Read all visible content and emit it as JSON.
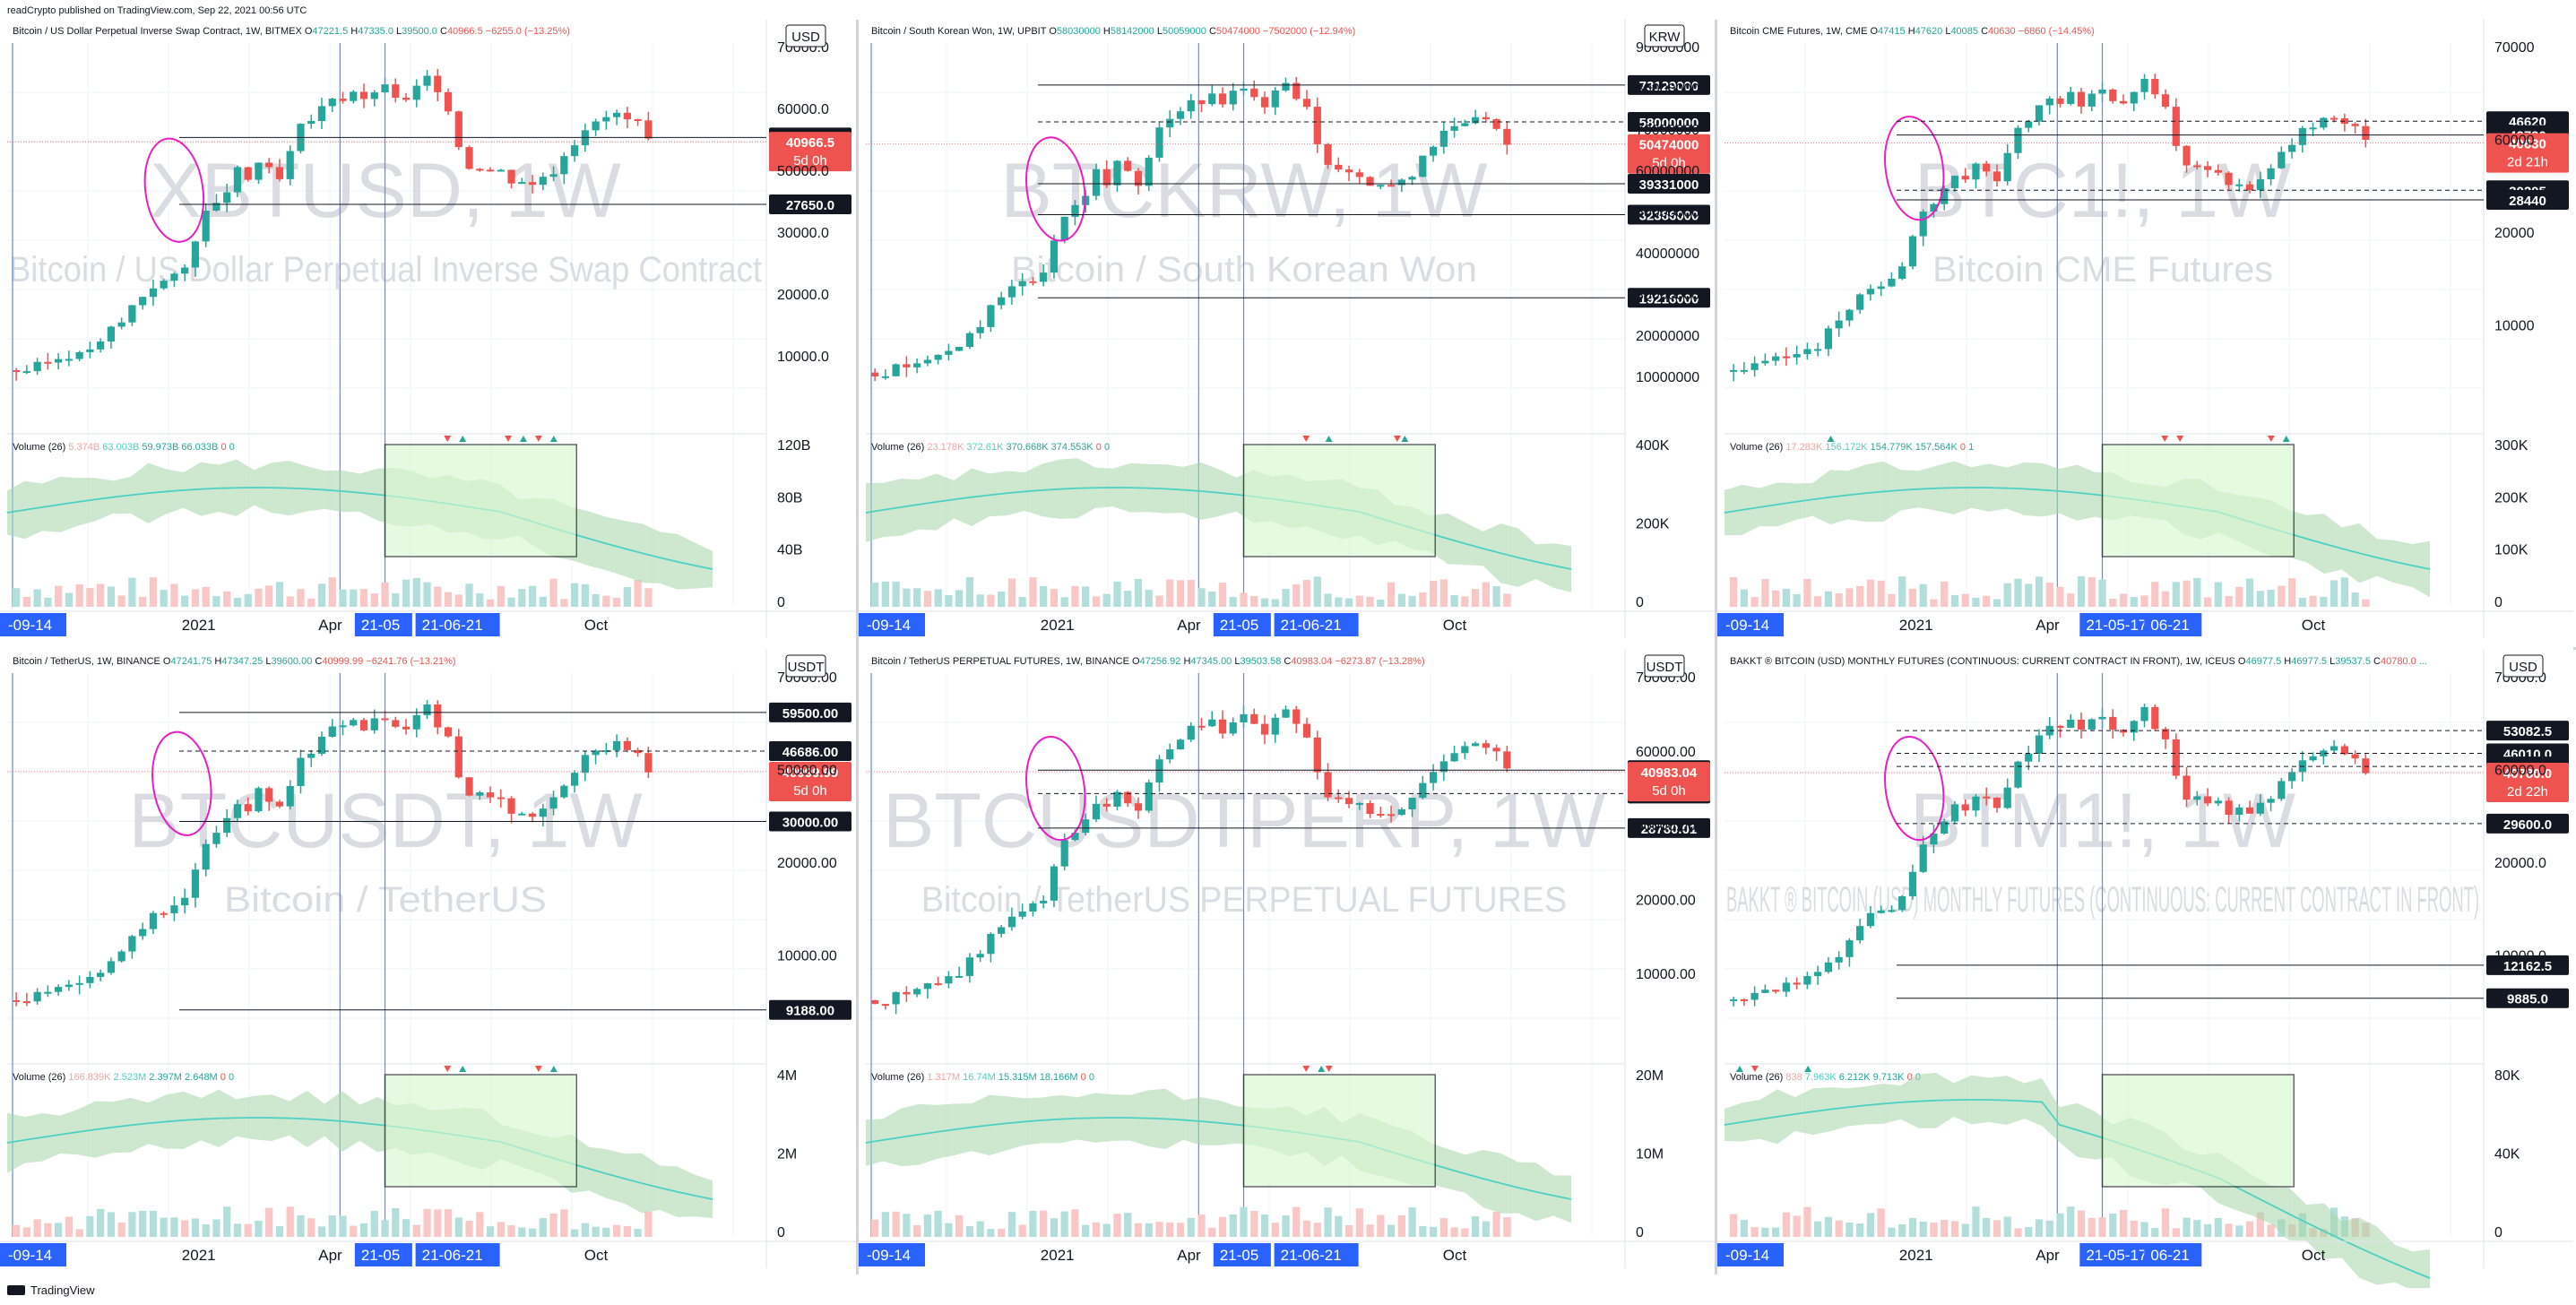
{
  "header": {
    "text": "readCrypto published on TradingView.com, Sep 22, 2021 00:56 UTC"
  },
  "footer": {
    "brand": "TradingView",
    "logo_icon": "tradingview-logo-icon"
  },
  "colors": {
    "up": "#26a69a",
    "down": "#ef5350",
    "grid": "#f0f3fa",
    "vline": "#5b8def",
    "cloud": "#a5d6a7",
    "cloud_red": "#f4a3a3",
    "ma": "#4dd0c4",
    "box_fill": "#d9f7d2",
    "circle": "#e91ec8",
    "price_bg": "#131722",
    "last_bg": "#ef5350"
  },
  "chart_data": [
    {
      "type": "candlestick",
      "info": "Bitcoin / US Dollar Perpetual Inverse Swap Contract, 1W, BITMEX",
      "ohlc": [
        {
          "k": "O",
          "v": "47221.5"
        },
        {
          "k": "H",
          "v": "47335.0"
        },
        {
          "k": "L",
          "v": "39500.0"
        },
        {
          "k": "C",
          "v": "40966.5",
          "d": true
        },
        {
          "k": "",
          "v": "−6255.0 (−13.25%)",
          "d": true
        }
      ],
      "watermark": "XBTUSD, 1W",
      "watermark_sub": "Bitcoin / US Dollar Perpetual Inverse Swap Contract",
      "currency": "USD",
      "ylim": [
        0,
        70000
      ],
      "log": true,
      "yticks": [
        "70000.0",
        "60000.0",
        "50000.0",
        "30000.0",
        "20000.0",
        "10000.0"
      ],
      "levels": [
        {
          "price": 42084.0,
          "label": "42084.0",
          "style": "solid"
        },
        {
          "price": 27650.0,
          "label": "27650.0",
          "style": "solid"
        }
      ],
      "last": {
        "price": 40966.5,
        "label": "40966.5",
        "countdown": "5d 0h"
      },
      "circle": {
        "x": 0.22,
        "y": 27000
      },
      "vlines": [
        0.0,
        0.49,
        0.56
      ],
      "volume": {
        "title": "Volume (26)",
        "vals": [
          {
            "t": "5.374B",
            "c": "#f4a3a3"
          },
          {
            "t": "63.003B",
            "c": "#4dd0c4"
          },
          {
            "t": "59.973B"
          },
          {
            "t": "66.033B"
          },
          {
            "t": "0",
            "c": "#ef5350"
          },
          {
            "t": "0",
            "c": "#26a69a"
          }
        ],
        "ticks": [
          "120B",
          "80B",
          "40B",
          "0"
        ],
        "box": [
          0.56,
          0.75
        ],
        "arrows": [
          [
            0.58,
            "dn"
          ],
          [
            0.6,
            "up"
          ],
          [
            0.66,
            "dn"
          ],
          [
            0.68,
            "up"
          ],
          [
            0.7,
            "dn"
          ],
          [
            0.72,
            "up"
          ]
        ],
        "cloud": "sample1"
      },
      "time": {
        "labels": [
          {
            "t": "-09-14",
            "x": 0.0,
            "hl": true
          },
          {
            "t": "2021",
            "x": 0.23
          },
          {
            "t": "Apr",
            "x": 0.41
          },
          {
            "t": "21-05",
            "x": 0.465,
            "hl": true
          },
          {
            "t": "21-06-21",
            "x": 0.545,
            "hl": true
          },
          {
            "t": "Oct",
            "x": 0.76
          }
        ]
      }
    },
    {
      "type": "candlestick",
      "info": "Bitcoin / South Korean Won, 1W, UPBIT",
      "ohlc": [
        {
          "k": "O",
          "v": "58030000"
        },
        {
          "k": "H",
          "v": "58142000"
        },
        {
          "k": "L",
          "v": "50059000"
        },
        {
          "k": "C",
          "v": "50474000",
          "d": true
        },
        {
          "k": "",
          "v": "−7502000 (−12.94%)",
          "d": true
        }
      ],
      "watermark": "BTCKRW, 1W",
      "watermark_sub": "Bitcoin / South Korean Won",
      "currency": "KRW",
      "ylim": [
        0,
        90000000
      ],
      "log": true,
      "yticks": [
        "90000000",
        "80000000",
        "70000000",
        "60000000",
        "50000000",
        "40000000",
        "30000000",
        "20000000",
        "10000000"
      ],
      "levels": [
        {
          "price": 73129000,
          "label": "73129000",
          "style": "solid"
        },
        {
          "price": 58000000,
          "label": "58000000",
          "style": "dashed"
        },
        {
          "price": 39331000,
          "label": "39331000",
          "style": "solid"
        },
        {
          "price": 32386000,
          "label": "32386000",
          "style": "solid"
        },
        {
          "price": 19216000,
          "label": "19216000",
          "style": "solid"
        }
      ],
      "last": {
        "price": 50474000,
        "label": "50474000",
        "countdown": "5d 0h"
      },
      "circle": {
        "x": 0.25,
        "y": 34000000
      },
      "vlines": [
        0.0,
        0.49,
        0.56
      ],
      "volume": {
        "title": "Volume (26)",
        "vals": [
          {
            "t": "23.178K",
            "c": "#f4a3a3"
          },
          {
            "t": "372.61K",
            "c": "#4dd0c4"
          },
          {
            "t": "370.668K"
          },
          {
            "t": "374.553K"
          },
          {
            "t": "0",
            "c": "#ef5350"
          },
          {
            "t": "0",
            "c": "#26a69a"
          }
        ],
        "ticks": [
          "400K",
          "200K",
          "0"
        ],
        "box": [
          0.56,
          0.75
        ],
        "arrows": [
          [
            0.58,
            "dn"
          ],
          [
            0.61,
            "up"
          ],
          [
            0.7,
            "dn"
          ],
          [
            0.71,
            "up"
          ]
        ],
        "cloud": "sample2"
      },
      "time": {
        "labels": [
          {
            "t": "-09-14",
            "x": 0.0,
            "hl": true
          },
          {
            "t": "2021",
            "x": 0.23
          },
          {
            "t": "Apr",
            "x": 0.41
          },
          {
            "t": "21-05",
            "x": 0.465,
            "hl": true
          },
          {
            "t": "21-06-21",
            "x": 0.545,
            "hl": true
          },
          {
            "t": "Oct",
            "x": 0.76
          }
        ]
      }
    },
    {
      "type": "candlestick",
      "info": "Bitcoin CME Futures, 1W, CME",
      "ohlc": [
        {
          "k": "O",
          "v": "47415"
        },
        {
          "k": "H",
          "v": "47620"
        },
        {
          "k": "L",
          "v": "40085"
        },
        {
          "k": "C",
          "v": "40630",
          "d": true
        },
        {
          "k": "",
          "v": "−6860 (−14.45%)",
          "d": true
        }
      ],
      "watermark": "BTC1!, 1W",
      "watermark_sub": "Bitcoin CME Futures",
      "currency": "",
      "ylim": [
        0,
        70000
      ],
      "log": true,
      "yticks": [
        "70000",
        "60000",
        "20000",
        "10000"
      ],
      "levels": [
        {
          "price": 46620,
          "label": "46620",
          "style": "dashed"
        },
        {
          "price": 42730,
          "label": "42730",
          "style": "solid"
        },
        {
          "price": 30205,
          "label": "30205",
          "style": "dashed"
        },
        {
          "price": 28440,
          "label": "28440",
          "style": "solid"
        }
      ],
      "last": {
        "price": 40630,
        "label": "40630",
        "countdown": "2d 21h"
      },
      "circle": {
        "x": 0.25,
        "y": 31000
      },
      "vlines": [
        0.49,
        0.56
      ],
      "volume": {
        "title": "Volume (26)",
        "vals": [
          {
            "t": "17.283K",
            "c": "#f4a3a3"
          },
          {
            "t": "156.172K",
            "c": "#4dd0c4"
          },
          {
            "t": "154.779K"
          },
          {
            "t": "157.564K"
          },
          {
            "t": "0",
            "c": "#ef5350"
          },
          {
            "t": "1",
            "c": "#26a69a"
          }
        ],
        "ticks": [
          "300K",
          "200K",
          "100K",
          "0"
        ],
        "box": [
          0.56,
          0.75
        ],
        "arrows": [
          [
            0.14,
            "up"
          ],
          [
            0.58,
            "dn"
          ],
          [
            0.6,
            "dn"
          ],
          [
            0.72,
            "dn"
          ],
          [
            0.74,
            "up"
          ]
        ],
        "cloud": "sample3"
      },
      "time": {
        "labels": [
          {
            "t": "-09-14",
            "x": 0.0,
            "hl": true
          },
          {
            "t": "2021",
            "x": 0.23
          },
          {
            "t": "Apr",
            "x": 0.41
          },
          {
            "t": "21-05-17",
            "x": 0.475,
            "hl": true
          },
          {
            "t": "06-21",
            "x": 0.56,
            "hl": true
          },
          {
            "t": "Oct",
            "x": 0.76
          }
        ]
      }
    },
    {
      "type": "candlestick",
      "info": "Bitcoin / TetherUS, 1W, BINANCE",
      "ohlc": [
        {
          "k": "O",
          "v": "47241.75"
        },
        {
          "k": "H",
          "v": "47347.25"
        },
        {
          "k": "L",
          "v": "39600.00"
        },
        {
          "k": "C",
          "v": "40999.99",
          "d": true
        },
        {
          "k": "",
          "v": "−6241.76 (−13.21%)",
          "d": true
        }
      ],
      "watermark": "BTCUSDT, 1W",
      "watermark_sub": "Bitcoin / TetherUS",
      "currency": "USDT",
      "ylim": [
        0,
        70000
      ],
      "log": true,
      "yticks": [
        "70000.00",
        "50000.00",
        "20000.00",
        "10000.00"
      ],
      "levels": [
        {
          "price": 59500.0,
          "label": "59500.00",
          "style": "solid"
        },
        {
          "price": 46686.0,
          "label": "46686.00",
          "style": "dashed"
        },
        {
          "price": 30000.0,
          "label": "30000.00",
          "style": "solid"
        },
        {
          "price": 9188.0,
          "label": "9188.00",
          "style": "solid"
        }
      ],
      "last": {
        "price": 40999.99,
        "label": "40999.99",
        "countdown": "5d 0h"
      },
      "circle": {
        "x": 0.23,
        "y": 34000
      },
      "vlines": [
        0.0,
        0.49,
        0.56
      ],
      "volume": {
        "title": "Volume (26)",
        "vals": [
          {
            "t": "166.839K",
            "c": "#f4a3a3"
          },
          {
            "t": "2.523M",
            "c": "#4dd0c4"
          },
          {
            "t": "2.397M"
          },
          {
            "t": "2.648M"
          },
          {
            "t": "0",
            "c": "#ef5350"
          },
          {
            "t": "0",
            "c": "#26a69a"
          }
        ],
        "ticks": [
          "4M",
          "2M",
          "0"
        ],
        "box": [
          0.56,
          0.75
        ],
        "arrows": [
          [
            0.58,
            "dn"
          ],
          [
            0.6,
            "up"
          ],
          [
            0.7,
            "dn"
          ],
          [
            0.72,
            "up"
          ]
        ],
        "cloud": "sample1"
      },
      "time": {
        "labels": [
          {
            "t": "-09-14",
            "x": 0.0,
            "hl": true
          },
          {
            "t": "2021",
            "x": 0.23
          },
          {
            "t": "Apr",
            "x": 0.41
          },
          {
            "t": "21-05",
            "x": 0.465,
            "hl": true
          },
          {
            "t": "21-06-21",
            "x": 0.545,
            "hl": true
          },
          {
            "t": "Oct",
            "x": 0.76
          }
        ]
      }
    },
    {
      "type": "candlestick",
      "info": "Bitcoin / TetherUS PERPETUAL FUTURES, 1W, BINANCE",
      "ohlc": [
        {
          "k": "O",
          "v": "47256.92"
        },
        {
          "k": "H",
          "v": "47345.00"
        },
        {
          "k": "L",
          "v": "39503.58"
        },
        {
          "k": "C",
          "v": "40983.04",
          "d": true
        },
        {
          "k": "",
          "v": "−6273.87 (−13.28%)",
          "d": true
        }
      ],
      "watermark": "BTCUSDTPERP, 1W",
      "watermark_sub": "Bitcoin / TetherUS PERPETUAL FUTURES",
      "currency": "USDT",
      "ylim": [
        0,
        70000
      ],
      "log": true,
      "yticks": [
        "70000.00",
        "60000.00",
        "50000.00",
        "20000.00",
        "10000.00"
      ],
      "levels": [
        {
          "price": 41413.0,
          "label": "41413.00",
          "style": "solid"
        },
        {
          "price": 35746.28,
          "label": "35746.28",
          "style": "dashed"
        },
        {
          "price": 28780.01,
          "label": "28780.01",
          "style": "solid"
        }
      ],
      "last": {
        "price": 40983.04,
        "label": "40983.04",
        "countdown": "5d 0h"
      },
      "circle": {
        "x": 0.25,
        "y": 33000
      },
      "vlines": [
        0.0,
        0.49,
        0.56
      ],
      "volume": {
        "title": "Volume (26)",
        "vals": [
          {
            "t": "1.317M",
            "c": "#f4a3a3"
          },
          {
            "t": "16.74M",
            "c": "#4dd0c4"
          },
          {
            "t": "15.315M"
          },
          {
            "t": "18.166M"
          },
          {
            "t": "0",
            "c": "#ef5350"
          },
          {
            "t": "0",
            "c": "#26a69a"
          }
        ],
        "ticks": [
          "20M",
          "10M",
          "0"
        ],
        "box": [
          0.56,
          0.75
        ],
        "arrows": [
          [
            0.58,
            "dn"
          ],
          [
            0.6,
            "up"
          ],
          [
            0.61,
            "dn"
          ]
        ],
        "cloud": "sample2"
      },
      "time": {
        "labels": [
          {
            "t": "-09-14",
            "x": 0.0,
            "hl": true
          },
          {
            "t": "2021",
            "x": 0.23
          },
          {
            "t": "Apr",
            "x": 0.41
          },
          {
            "t": "21-05",
            "x": 0.465,
            "hl": true
          },
          {
            "t": "21-06-21",
            "x": 0.545,
            "hl": true
          },
          {
            "t": "Oct",
            "x": 0.76
          }
        ]
      }
    },
    {
      "type": "candlestick",
      "info": "BAKKT ® BITCOIN (USD) MONTHLY FUTURES (CONTINUOUS: CURRENT CONTRACT IN FRONT), 1W, ICEUS",
      "ohlc": [
        {
          "k": "O",
          "v": "46977.5"
        },
        {
          "k": "H",
          "v": "46977.5"
        },
        {
          "k": "L",
          "v": "39537.5"
        },
        {
          "k": "C",
          "v": "40780.0",
          "d": true
        },
        {
          "k": "",
          "v": "..."
        }
      ],
      "watermark": "BTM1!, 1W",
      "watermark_sub": "BAKKT ® BITCOIN (USD) MONTHLY FUTURES (CONTINUOUS: CURRENT CONTRACT IN FRONT)",
      "currency": "USD",
      "ylim": [
        0,
        70000
      ],
      "log": true,
      "yticks": [
        "70000.0",
        "60000.0",
        "20000.0",
        "10000.0"
      ],
      "levels": [
        {
          "price": 53082.5,
          "label": "53082.5",
          "style": "dashed"
        },
        {
          "price": 46010.0,
          "label": "46010.0",
          "style": "dashed"
        },
        {
          "price": 42377.5,
          "label": "42377.5",
          "style": "dashed"
        },
        {
          "price": 29600.0,
          "label": "29600.0",
          "style": "dashed"
        },
        {
          "price": 12162.5,
          "label": "12162.5",
          "style": "solid"
        },
        {
          "price": 9885.0,
          "label": "9885.0",
          "style": "solid"
        }
      ],
      "last": {
        "price": 40780.0,
        "label": "40780.0",
        "countdown": "2d 22h"
      },
      "circle": {
        "x": 0.25,
        "y": 33000
      },
      "vlines": [
        0.49,
        0.56
      ],
      "volume": {
        "title": "Volume (26)",
        "vals": [
          {
            "t": "838",
            "c": "#f4a3a3"
          },
          {
            "t": "7.963K",
            "c": "#4dd0c4"
          },
          {
            "t": "6.212K"
          },
          {
            "t": "9.713K"
          },
          {
            "t": "0",
            "c": "#ef5350"
          },
          {
            "t": "0",
            "c": "#26a69a"
          }
        ],
        "ticks": [
          "80K",
          "40K",
          "0"
        ],
        "box": [
          0.56,
          0.75
        ],
        "arrows": [
          [
            0.02,
            "up"
          ],
          [
            0.04,
            "dn"
          ],
          [
            0.11,
            "up"
          ]
        ],
        "cloud": "sample4"
      },
      "time": {
        "labels": [
          {
            "t": "-09-14",
            "x": 0.0,
            "hl": true
          },
          {
            "t": "2021",
            "x": 0.23
          },
          {
            "t": "Apr",
            "x": 0.41
          },
          {
            "t": "21-05-17",
            "x": 0.475,
            "hl": true
          },
          {
            "t": "06-21",
            "x": 0.56,
            "hl": true
          },
          {
            "t": "Oct",
            "x": 0.76
          }
        ]
      }
    }
  ]
}
